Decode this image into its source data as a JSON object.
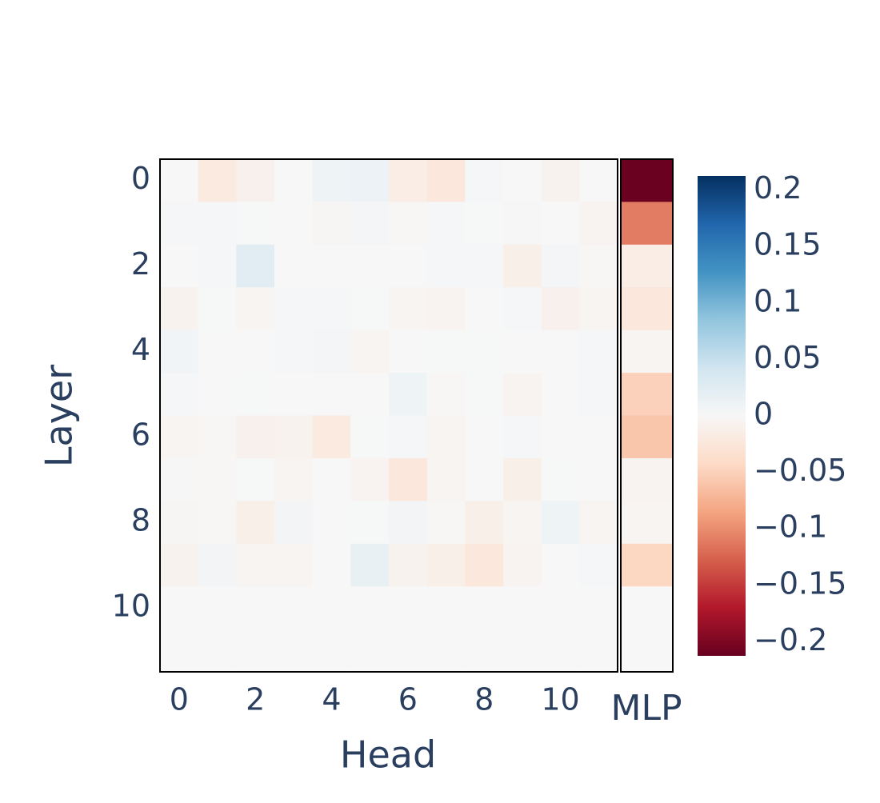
{
  "chart_data": {
    "type": "heatmap",
    "x_label": "Head",
    "y_label": "Layer",
    "x": [
      0,
      1,
      2,
      3,
      4,
      5,
      6,
      7,
      8,
      9,
      10,
      11
    ],
    "y": [
      0,
      1,
      2,
      3,
      4,
      5,
      6,
      7,
      8,
      9,
      10,
      11
    ],
    "xlim": [
      -0.5,
      11.5
    ],
    "ylim": [
      -0.5,
      11.5
    ],
    "xticks": [
      0,
      2,
      4,
      6,
      8,
      10
    ],
    "yticks": [
      0,
      2,
      4,
      6,
      8,
      10
    ],
    "z": [
      [
        0,
        -0.02,
        -0.01,
        0,
        0.01,
        0.012,
        -0.015,
        -0.025,
        0.003,
        0,
        -0.008,
        0
      ],
      [
        0.002,
        0.002,
        0.001,
        0,
        -0.003,
        0.004,
        -0.002,
        0.002,
        0.001,
        -0.001,
        0,
        -0.006
      ],
      [
        0,
        0.002,
        0.025,
        0,
        0,
        0,
        0,
        0.003,
        0.003,
        -0.012,
        0.004,
        -0.002
      ],
      [
        -0.008,
        0.001,
        -0.004,
        0.002,
        0.002,
        0.001,
        -0.005,
        -0.006,
        0,
        0.003,
        -0.01,
        -0.004
      ],
      [
        0.008,
        0,
        0,
        0.002,
        0.005,
        -0.004,
        0,
        0.001,
        0.001,
        0,
        0,
        0.002
      ],
      [
        0.002,
        0,
        0.001,
        0,
        0,
        0,
        0.01,
        -0.002,
        0.001,
        -0.006,
        0,
        0.002
      ],
      [
        -0.004,
        -0.002,
        -0.01,
        -0.008,
        -0.02,
        0.001,
        0.002,
        -0.005,
        0,
        0.003,
        0,
        0
      ],
      [
        -0.001,
        -0.002,
        0.001,
        -0.005,
        0,
        -0.006,
        -0.025,
        -0.004,
        0,
        -0.012,
        0.001,
        0
      ],
      [
        -0.003,
        -0.002,
        -0.012,
        0.006,
        0,
        0.001,
        0.006,
        -0.002,
        -0.012,
        -0.005,
        0.01,
        -0.004
      ],
      [
        -0.007,
        0.006,
        -0.005,
        -0.005,
        0,
        0.016,
        -0.008,
        -0.012,
        -0.025,
        -0.006,
        0,
        0.002
      ],
      [
        0,
        0,
        0,
        0,
        0,
        0,
        0,
        0,
        0,
        0,
        0,
        0
      ],
      [
        0,
        0,
        0,
        0,
        0,
        0,
        0,
        0,
        0,
        0,
        0,
        0
      ]
    ],
    "mlp": {
      "label": "MLP",
      "values": [
        -0.21,
        -0.11,
        -0.015,
        -0.025,
        -0.005,
        -0.05,
        -0.06,
        -0.006,
        -0.004,
        -0.045,
        0,
        0
      ]
    },
    "colorscale": [
      "#67001f",
      "#b2182b",
      "#d6604d",
      "#f4a582",
      "#fddbc7",
      "#f7f7f7",
      "#d1e5f0",
      "#92c5de",
      "#4393c3",
      "#2166ac",
      "#053061"
    ],
    "clim": [
      -0.2125,
      0.2125
    ],
    "cticks": [
      0.2,
      0.15,
      0.1,
      0.05,
      0,
      {
        "value": -0.05,
        "label": "−0.05"
      },
      {
        "value": -0.1,
        "label": "−0.1"
      },
      {
        "value": -0.15,
        "label": "−0.15"
      },
      {
        "value": -0.2,
        "label": "−0.2"
      }
    ]
  }
}
